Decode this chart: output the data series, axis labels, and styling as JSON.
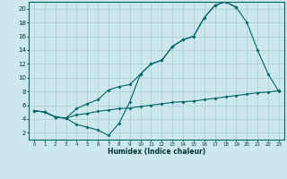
{
  "xlabel": "Humidex (Indice chaleur)",
  "bg_color": "#cce8ec",
  "grid_color": "#aaccd4",
  "line_color": "#006666",
  "xlim": [
    -0.5,
    23.5
  ],
  "ylim": [
    1,
    21
  ],
  "xticks": [
    0,
    1,
    2,
    3,
    4,
    5,
    6,
    7,
    8,
    9,
    10,
    11,
    12,
    13,
    14,
    15,
    16,
    17,
    18,
    19,
    20,
    21,
    22,
    23
  ],
  "yticks": [
    2,
    4,
    6,
    8,
    10,
    12,
    14,
    16,
    18,
    20
  ],
  "line1_x": [
    0,
    1,
    2,
    3,
    4,
    5,
    6,
    7,
    8,
    9,
    10,
    11,
    12,
    13,
    14,
    15,
    16,
    17,
    18,
    19
  ],
  "line1_y": [
    5.2,
    5.0,
    4.3,
    4.1,
    5.5,
    6.2,
    6.8,
    8.2,
    8.7,
    9.0,
    10.5,
    12.0,
    12.5,
    14.5,
    15.5,
    16.0,
    18.7,
    20.5,
    21.0,
    20.2
  ],
  "line2_x": [
    0,
    1,
    2,
    3,
    4,
    5,
    6,
    7,
    8,
    9,
    10,
    11,
    12,
    13,
    14,
    15,
    16,
    17,
    18,
    19,
    20,
    21,
    22,
    23
  ],
  "line2_y": [
    5.2,
    5.0,
    4.3,
    4.1,
    3.2,
    2.8,
    2.4,
    1.6,
    3.4,
    6.5,
    10.5,
    12.0,
    12.5,
    14.5,
    15.5,
    16.0,
    18.7,
    20.5,
    21.0,
    20.2,
    18.0,
    14.0,
    10.5,
    8.0
  ],
  "line3_x": [
    0,
    1,
    2,
    3,
    4,
    5,
    6,
    7,
    8,
    9,
    10,
    11,
    12,
    13,
    14,
    15,
    16,
    17,
    18,
    19,
    20,
    21,
    22,
    23
  ],
  "line3_y": [
    5.2,
    5.0,
    4.3,
    4.1,
    4.6,
    4.8,
    5.1,
    5.3,
    5.5,
    5.6,
    5.8,
    6.0,
    6.2,
    6.4,
    6.5,
    6.6,
    6.8,
    7.0,
    7.2,
    7.4,
    7.6,
    7.8,
    7.9,
    8.1
  ]
}
